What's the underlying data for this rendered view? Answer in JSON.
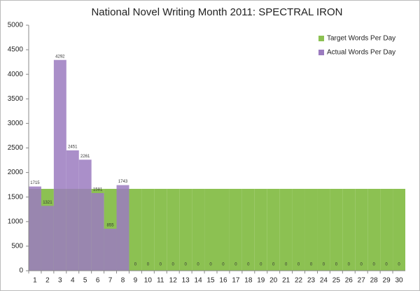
{
  "chart_data": {
    "type": "bar",
    "title": "National Novel Writing Month 2011: SPECTRAL IRON",
    "categories": [
      "1",
      "2",
      "3",
      "4",
      "5",
      "6",
      "7",
      "8",
      "9",
      "10",
      "11",
      "12",
      "13",
      "14",
      "15",
      "16",
      "17",
      "18",
      "19",
      "20",
      "21",
      "22",
      "23",
      "24",
      "25",
      "26",
      "27",
      "28",
      "29",
      "30"
    ],
    "series": [
      {
        "name": "Target Words Per Day",
        "color": "#8cc152",
        "values": [
          1667,
          1667,
          1667,
          1667,
          1667,
          1667,
          1667,
          1667,
          1667,
          1667,
          1667,
          1667,
          1667,
          1667,
          1667,
          1667,
          1667,
          1667,
          1667,
          1667,
          1667,
          1667,
          1667,
          1667,
          1667,
          1667,
          1667,
          1667,
          1667,
          1667
        ]
      },
      {
        "name": "Actual Words Per Day",
        "color": "#9b7bbf",
        "values": [
          1715,
          1321,
          4292,
          2451,
          2261,
          1581,
          855,
          1743,
          0,
          0,
          0,
          0,
          0,
          0,
          0,
          0,
          0,
          0,
          0,
          0,
          0,
          0,
          0,
          0,
          0,
          0,
          0,
          0,
          0,
          0
        ]
      }
    ],
    "ylim": [
      0,
      5000
    ],
    "yticks": [
      0,
      500,
      1000,
      1500,
      2000,
      2500,
      3000,
      3500,
      4000,
      4500,
      5000
    ],
    "grid": false,
    "legend": "top-right"
  }
}
